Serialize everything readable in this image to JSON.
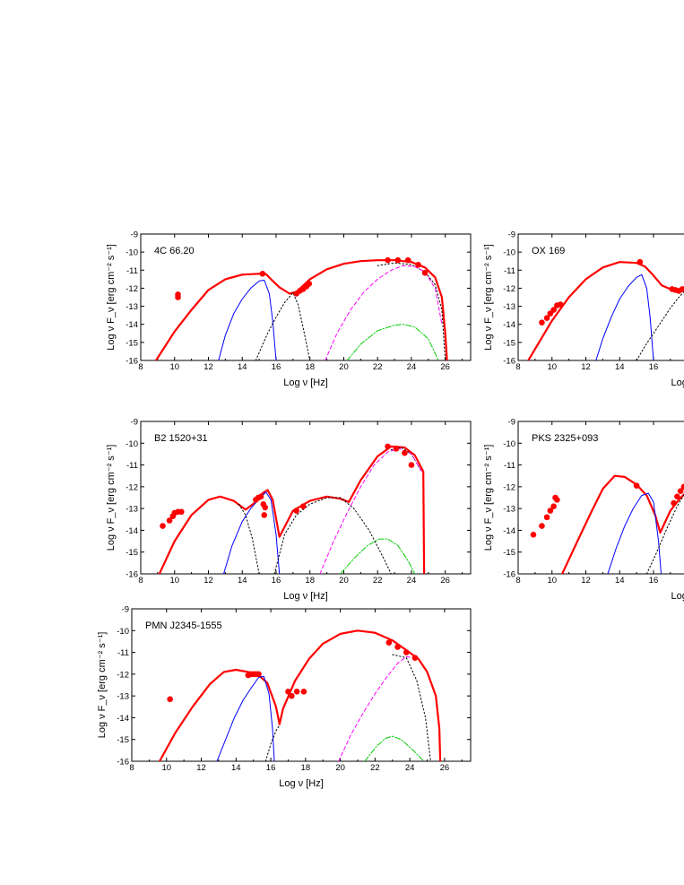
{
  "chart_data": [
    {
      "type": "line",
      "title": "4C 66.20",
      "xlabel": "Log ν [Hz]",
      "ylabel": "Log ν F_ν [erg cm⁻² s⁻¹]",
      "xlim": [
        8,
        27.5
      ],
      "ylim": [
        -16,
        -9
      ],
      "xticks": [
        8,
        10,
        12,
        14,
        16,
        18,
        20,
        22,
        24,
        26
      ],
      "yticks": [
        -16,
        -15,
        -14,
        -13,
        -12,
        -11,
        -10,
        -9
      ],
      "series": [
        {
          "style": "total",
          "color": "#ff0000",
          "x": [
            8.9,
            10,
            11,
            12,
            13,
            14,
            15,
            15.4,
            15.7,
            16.2,
            16.8,
            17.2,
            18,
            19,
            20,
            21,
            22,
            23,
            24,
            24.8,
            25.4,
            25.8,
            26.0,
            26.1
          ],
          "y": [
            -16,
            -14.4,
            -13.2,
            -12.1,
            -11.5,
            -11.25,
            -11.2,
            -11.22,
            -11.5,
            -11.95,
            -12.3,
            -12.2,
            -11.5,
            -10.95,
            -10.65,
            -10.5,
            -10.45,
            -10.45,
            -10.55,
            -10.85,
            -11.4,
            -12.5,
            -14.5,
            -16
          ]
        },
        {
          "style": "synchrotron",
          "color": "#0000ff",
          "x": [
            12.6,
            13,
            13.5,
            14,
            14.5,
            15,
            15.3,
            15.6,
            15.8,
            16.0
          ],
          "y": [
            -16,
            -14.6,
            -13.4,
            -12.6,
            -12.0,
            -11.6,
            -11.55,
            -12.3,
            -13.8,
            -16
          ]
        },
        {
          "style": "dotted",
          "color": "#000000",
          "x": [
            14.8,
            15.5,
            16,
            16.5,
            17,
            17.3,
            17.6,
            18
          ],
          "y": [
            -16,
            -14.5,
            -13.6,
            -12.8,
            -12.25,
            -12.9,
            -14.2,
            -16
          ]
        },
        {
          "style": "dotted",
          "color": "#000000",
          "x": [
            22,
            23,
            24,
            24.8,
            25.4,
            25.8,
            26.0
          ],
          "y": [
            -10.75,
            -10.6,
            -10.7,
            -11.1,
            -11.8,
            -13.2,
            -16
          ]
        },
        {
          "style": "dashed",
          "color": "#ff00ff",
          "x": [
            18.9,
            19.6,
            20.4,
            21.2,
            22,
            22.8,
            23.5,
            24.2,
            24.8,
            25.4,
            25.8
          ],
          "y": [
            -16,
            -14.5,
            -13.2,
            -12.2,
            -11.5,
            -11.0,
            -10.75,
            -10.8,
            -11.1,
            -12,
            -14
          ]
        },
        {
          "style": "dashdot",
          "color": "#00cc00",
          "x": [
            20.2,
            21,
            22,
            23,
            23.5,
            24.2,
            25,
            25.6
          ],
          "y": [
            -16,
            -15.1,
            -14.35,
            -14.05,
            -14.0,
            -14.15,
            -14.8,
            -16
          ]
        },
        {
          "style": "points",
          "color": "#ff0000",
          "x": [
            10.2,
            10.2,
            15.2,
            17.2,
            17.4,
            17.6,
            17.8,
            17.95,
            22.6,
            23.2,
            23.8,
            24.4,
            24.8
          ],
          "y": [
            -12.35,
            -12.5,
            -11.2,
            -12.3,
            -12.15,
            -12.05,
            -11.9,
            -11.75,
            -10.45,
            -10.45,
            -10.45,
            -10.7,
            -11.15
          ]
        }
      ]
    },
    {
      "type": "line",
      "title": "OX 169",
      "xlabel": "Log ν",
      "ylabel": "Log ν F_ν [erg cm⁻² s⁻¹]",
      "xlim": [
        8,
        27.5
      ],
      "ylim": [
        -16,
        -9
      ],
      "xticks": [
        8,
        10,
        12,
        14,
        16
      ],
      "yticks": [
        -16,
        -15,
        -14,
        -13,
        -12,
        -11,
        -10,
        -9
      ],
      "series": [
        {
          "style": "total",
          "color": "#ff0000",
          "x": [
            8.6,
            10,
            11,
            12,
            13,
            14,
            15,
            15.5,
            16,
            16.5,
            17,
            17.5,
            18
          ],
          "y": [
            -16,
            -13.8,
            -12.5,
            -11.5,
            -10.85,
            -10.55,
            -10.6,
            -10.8,
            -11.3,
            -11.85,
            -12.05,
            -12.15,
            -12.1
          ]
        },
        {
          "style": "synchrotron",
          "color": "#0000ff",
          "x": [
            12.6,
            13,
            13.5,
            14,
            14.5,
            15,
            15.3,
            15.6,
            15.8,
            16.0
          ],
          "y": [
            -16,
            -14.8,
            -13.6,
            -12.6,
            -11.9,
            -11.4,
            -11.25,
            -12.0,
            -13.6,
            -16
          ]
        },
        {
          "style": "dotted",
          "color": "#000000",
          "x": [
            15,
            15.5,
            16,
            16.5,
            17,
            17.5,
            18
          ],
          "y": [
            -16,
            -15.2,
            -14.5,
            -13.8,
            -13.1,
            -12.5,
            -12.0
          ]
        },
        {
          "style": "points",
          "color": "#ff0000",
          "x": [
            9.4,
            9.7,
            9.9,
            10.1,
            10.3,
            10.5,
            15.2,
            17.1,
            17.3,
            17.5,
            17.7
          ],
          "y": [
            -13.9,
            -13.65,
            -13.4,
            -13.2,
            -12.95,
            -12.9,
            -10.55,
            -12.05,
            -12.1,
            -12.15,
            -12.05
          ]
        }
      ]
    },
    {
      "type": "line",
      "title": "B2 1520+31",
      "xlabel": "Log ν [Hz]",
      "ylabel": "Log ν F_ν [erg cm⁻² s⁻¹]",
      "xlim": [
        8,
        27.5
      ],
      "ylim": [
        -16,
        -9
      ],
      "xticks": [
        8,
        10,
        12,
        14,
        16,
        18,
        20,
        22,
        24,
        26
      ],
      "yticks": [
        -16,
        -15,
        -14,
        -13,
        -12,
        -11,
        -10,
        -9
      ],
      "series": [
        {
          "style": "total",
          "color": "#ff0000",
          "x": [
            9.1,
            10,
            11,
            12,
            12.7,
            13.5,
            14.2,
            14.8,
            15.2,
            15.5,
            15.8,
            16.2,
            17,
            18,
            19,
            19.8,
            20.3,
            21,
            22,
            22.8,
            23.6,
            24.2,
            24.7,
            24.75
          ],
          "y": [
            -16,
            -14.5,
            -13.3,
            -12.6,
            -12.45,
            -12.65,
            -13.05,
            -12.7,
            -12.3,
            -12.15,
            -12.6,
            -14.3,
            -13.1,
            -12.65,
            -12.45,
            -12.55,
            -12.7,
            -11.7,
            -10.6,
            -10.15,
            -10.2,
            -10.55,
            -11.3,
            -16
          ]
        },
        {
          "style": "synchrotron",
          "color": "#0000ff",
          "x": [
            12.9,
            13.4,
            14,
            14.5,
            15,
            15.4,
            15.7,
            16.0,
            16.2
          ],
          "y": [
            -16,
            -14.7,
            -13.6,
            -13.0,
            -12.55,
            -12.25,
            -12.6,
            -14.2,
            -16
          ]
        },
        {
          "style": "dotted",
          "color": "#000000",
          "x": [
            13.8,
            14.2,
            14.6,
            14.8,
            15.0
          ],
          "y": [
            -12.8,
            -13.3,
            -14.4,
            -15.2,
            -16
          ]
        },
        {
          "style": "dotted",
          "color": "#000000",
          "x": [
            15.9,
            16.5,
            17.2,
            18,
            19,
            19.8,
            20.6,
            21.5,
            22.3,
            22.8
          ],
          "y": [
            -16,
            -14.2,
            -13.3,
            -12.8,
            -12.5,
            -12.5,
            -13.0,
            -14.0,
            -15.2,
            -16
          ]
        },
        {
          "style": "dotted",
          "color": "#000000",
          "x": [
            22.8,
            23.4,
            24,
            24.6
          ],
          "y": [
            -10.3,
            -10.2,
            -10.5,
            -11.3
          ]
        },
        {
          "style": "dashed",
          "color": "#ff00ff",
          "x": [
            18.6,
            19.4,
            20.2,
            21,
            21.8,
            22.6,
            23.3,
            24.0,
            24.6
          ],
          "y": [
            -16,
            -14.5,
            -13.2,
            -12.0,
            -11.0,
            -10.4,
            -10.25,
            -10.5,
            -11.3
          ]
        },
        {
          "style": "dashdot",
          "color": "#00cc00",
          "x": [
            19.8,
            20.6,
            21.4,
            22.1,
            22.6,
            23.2,
            23.8,
            24.2
          ],
          "y": [
            -16,
            -15.3,
            -14.7,
            -14.4,
            -14.4,
            -14.7,
            -15.4,
            -16
          ]
        },
        {
          "style": "points",
          "color": "#ff0000",
          "x": [
            9.3,
            9.7,
            9.9,
            10.0,
            10.2,
            10.4,
            14.8,
            14.95,
            15.1,
            15.25,
            15.35,
            15.3,
            17.2,
            17.6,
            22.6,
            23.1,
            23.6,
            24.0
          ],
          "y": [
            -13.8,
            -13.55,
            -13.35,
            -13.2,
            -13.15,
            -13.15,
            -12.6,
            -12.5,
            -12.45,
            -12.8,
            -12.95,
            -13.3,
            -13.1,
            -12.9,
            -10.15,
            -10.25,
            -10.45,
            -11.0
          ]
        }
      ]
    },
    {
      "type": "line",
      "title": "PKS 2325+093",
      "xlabel": "Log ν",
      "ylabel": "Log ν F_ν [erg cm⁻² s⁻¹]",
      "xlim": [
        8,
        27.5
      ],
      "ylim": [
        -16,
        -9
      ],
      "xticks": [
        8,
        10,
        12,
        14,
        16
      ],
      "yticks": [
        -16,
        -15,
        -14,
        -13,
        -12,
        -11,
        -10,
        -9
      ],
      "series": [
        {
          "style": "total",
          "color": "#ff0000",
          "x": [
            10.6,
            11.5,
            12.3,
            13,
            13.7,
            14.3,
            15,
            15.6,
            16.1,
            16.4,
            17,
            17.5,
            18
          ],
          "y": [
            -16,
            -14.5,
            -13.2,
            -12.1,
            -11.5,
            -11.55,
            -11.9,
            -12.4,
            -13.3,
            -14.1,
            -13.1,
            -12.6,
            -12.2
          ]
        },
        {
          "style": "synchrotron",
          "color": "#0000ff",
          "x": [
            13.3,
            13.8,
            14.3,
            14.8,
            15.3,
            15.7,
            16.0,
            16.3,
            16.45
          ],
          "y": [
            -16,
            -14.8,
            -13.8,
            -13.0,
            -12.4,
            -12.3,
            -12.7,
            -14.5,
            -16
          ]
        },
        {
          "style": "dotted",
          "color": "#000000",
          "x": [
            15.6,
            16.2,
            16.8,
            17.4,
            18
          ],
          "y": [
            -16,
            -15.0,
            -13.9,
            -12.9,
            -12.1
          ]
        },
        {
          "style": "points",
          "color": "#ff0000",
          "x": [
            8.9,
            9.4,
            9.7,
            9.9,
            10.1,
            10.3,
            10.2,
            15.0,
            17.2,
            17.4,
            17.6,
            17.8
          ],
          "y": [
            -14.2,
            -13.8,
            -13.4,
            -13.1,
            -12.9,
            -12.6,
            -12.5,
            -11.95,
            -12.75,
            -12.45,
            -12.2,
            -12.0
          ]
        }
      ]
    },
    {
      "type": "line",
      "title": "PMN J2345-1555",
      "xlabel": "Log ν [Hz]",
      "ylabel": "Log ν F_ν [erg cm⁻² s⁻¹]",
      "xlim": [
        8,
        27.5
      ],
      "ylim": [
        -16,
        -9
      ],
      "xticks": [
        8,
        10,
        12,
        14,
        16,
        18,
        20,
        22,
        24,
        26
      ],
      "yticks": [
        -16,
        -15,
        -14,
        -13,
        -12,
        -11,
        -10,
        -9
      ],
      "series": [
        {
          "style": "total",
          "color": "#ff0000",
          "x": [
            9.6,
            10.5,
            11.5,
            12.5,
            13.3,
            14,
            14.7,
            15.3,
            15.8,
            16.3,
            16.5,
            16.7,
            17.4,
            18.2,
            19,
            20,
            21,
            22,
            23,
            23.8,
            24.5,
            25,
            25.5,
            25.7,
            25.75
          ],
          "y": [
            -16,
            -14.7,
            -13.5,
            -12.45,
            -11.9,
            -11.8,
            -11.9,
            -12.05,
            -12.4,
            -13.5,
            -14.3,
            -13.6,
            -12.3,
            -11.3,
            -10.6,
            -10.15,
            -10.0,
            -10.1,
            -10.45,
            -10.9,
            -11.3,
            -11.9,
            -13.0,
            -14.5,
            -16
          ]
        },
        {
          "style": "synchrotron",
          "color": "#0000ff",
          "x": [
            12.9,
            13.4,
            13.9,
            14.4,
            14.9,
            15.3,
            15.6,
            15.9,
            16.1,
            16.2
          ],
          "y": [
            -16,
            -15.0,
            -14.0,
            -13.2,
            -12.6,
            -12.15,
            -12.1,
            -12.9,
            -14.5,
            -16
          ]
        },
        {
          "style": "dotted",
          "color": "#000000",
          "x": [
            15.7,
            16.0,
            16.3,
            16.5
          ],
          "y": [
            -16,
            -15.2,
            -14.6,
            -14.35
          ]
        },
        {
          "style": "dotted",
          "color": "#000000",
          "x": [
            23.0,
            23.8,
            24.4,
            24.9,
            25.2
          ],
          "y": [
            -11.1,
            -11.25,
            -12.3,
            -14.0,
            -16
          ]
        },
        {
          "style": "dashed",
          "color": "#ff00ff",
          "x": [
            19.9,
            20.6,
            21.3,
            22,
            22.7,
            23.3,
            23.8,
            24.3
          ],
          "y": [
            -16,
            -14.8,
            -13.8,
            -12.9,
            -12.1,
            -11.5,
            -11.2,
            -11.25
          ]
        },
        {
          "style": "dashdot",
          "color": "#00cc00",
          "x": [
            21.4,
            22.1,
            22.6,
            23.0,
            23.5,
            24.2,
            24.8
          ],
          "y": [
            -16,
            -15.3,
            -14.95,
            -14.85,
            -15.0,
            -15.5,
            -16
          ]
        },
        {
          "style": "points",
          "color": "#ff0000",
          "x": [
            10.2,
            14.7,
            14.85,
            15.0,
            15.15,
            15.3,
            17.0,
            17.2,
            17.5,
            17.9,
            22.8,
            23.3,
            23.8,
            24.3
          ],
          "y": [
            -13.15,
            -12.05,
            -12.0,
            -12.0,
            -12.0,
            -12.0,
            -12.8,
            -13.0,
            -12.8,
            -12.8,
            -10.55,
            -10.75,
            -11.0,
            -11.25
          ]
        }
      ]
    }
  ]
}
